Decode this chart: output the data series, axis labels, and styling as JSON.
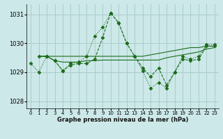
{
  "title": "Graphe pression niveau de la mer (hPa)",
  "background_color": "#cce8e8",
  "grid_color": "#aacccc",
  "line_color": "#1a6b1a",
  "xlim": [
    -0.5,
    23.5
  ],
  "ylim": [
    1027.75,
    1031.35
  ],
  "yticks": [
    1028,
    1029,
    1030,
    1031
  ],
  "xticks": [
    0,
    1,
    2,
    3,
    4,
    5,
    6,
    7,
    8,
    9,
    10,
    11,
    12,
    13,
    14,
    15,
    16,
    17,
    18,
    19,
    20,
    21,
    22,
    23
  ],
  "series": [
    {
      "x": [
        0,
        1,
        2,
        3,
        4,
        5,
        6,
        7,
        8,
        9,
        10,
        11,
        12,
        13,
        14,
        15,
        16,
        17,
        18,
        19,
        20,
        21,
        22,
        23
      ],
      "y": [
        1029.3,
        1029.0,
        1029.55,
        1029.4,
        1029.05,
        1029.3,
        1029.35,
        1029.55,
        1030.25,
        1030.55,
        1031.05,
        1030.7,
        1030.0,
        1029.55,
        1029.05,
        1028.45,
        1028.65,
        1028.45,
        1029.0,
        1029.55,
        1029.45,
        1029.55,
        1029.95,
        1029.95
      ],
      "style": "dotted",
      "marker": "D",
      "markersize": 2.5
    },
    {
      "x": [
        1,
        2,
        3,
        4,
        5,
        6,
        7,
        8,
        9,
        10,
        11,
        12,
        13,
        14,
        15,
        16,
        17,
        18,
        19,
        20,
        21,
        22,
        23
      ],
      "y": [
        1029.55,
        1029.55,
        1029.55,
        1029.55,
        1029.55,
        1029.55,
        1029.55,
        1029.55,
        1029.55,
        1029.55,
        1029.55,
        1029.55,
        1029.55,
        1029.55,
        1029.6,
        1029.65,
        1029.7,
        1029.75,
        1029.8,
        1029.85,
        1029.85,
        1029.9,
        1029.9
      ],
      "style": "solid",
      "marker": null,
      "markersize": 0
    },
    {
      "x": [
        1,
        2,
        3,
        4,
        5,
        6,
        7,
        8,
        9,
        10,
        11,
        12,
        13,
        14,
        15,
        16,
        17,
        18,
        19,
        20,
        21,
        22,
        23
      ],
      "y": [
        1029.55,
        1029.55,
        1029.4,
        1029.35,
        1029.35,
        1029.35,
        1029.4,
        1029.4,
        1029.42,
        1029.42,
        1029.42,
        1029.42,
        1029.42,
        1029.42,
        1029.42,
        1029.42,
        1029.5,
        1029.55,
        1029.6,
        1029.65,
        1029.7,
        1029.8,
        1029.85
      ],
      "style": "solid",
      "marker": null,
      "markersize": 0
    },
    {
      "x": [
        1,
        2,
        3,
        4,
        5,
        6,
        7,
        8,
        9,
        10,
        11,
        12,
        13,
        14,
        15,
        16,
        17,
        18,
        19,
        20,
        21,
        22,
        23
      ],
      "y": [
        1029.55,
        1029.55,
        1029.4,
        1029.05,
        1029.25,
        1029.3,
        1029.3,
        1029.45,
        1030.2,
        1031.05,
        1030.7,
        1030.0,
        1029.55,
        1029.15,
        1028.85,
        1029.15,
        1028.55,
        1029.0,
        1029.45,
        1029.4,
        1029.45,
        1029.9,
        1029.9
      ],
      "style": "dashed",
      "marker": "D",
      "markersize": 2.5
    }
  ]
}
